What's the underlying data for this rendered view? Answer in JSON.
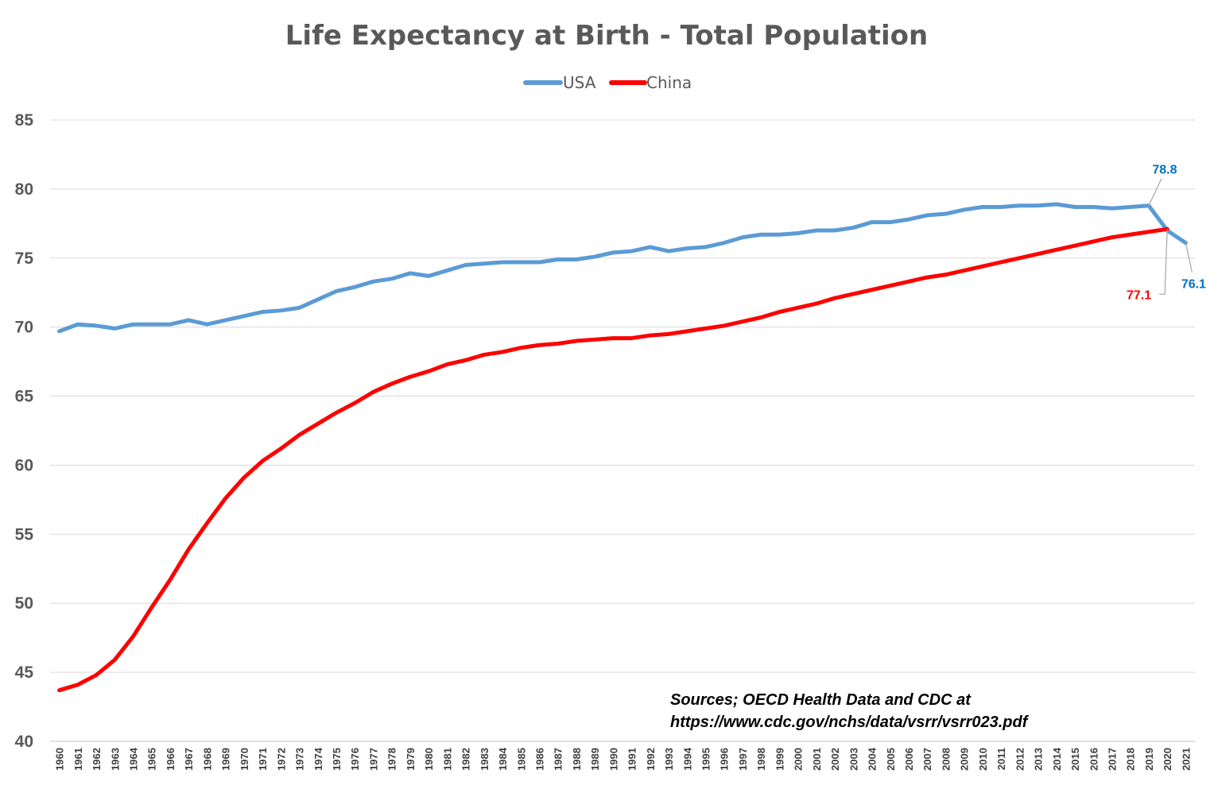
{
  "chart_data": {
    "type": "line",
    "title": "Life Expectancy at Birth - Total Population",
    "xlabel": "",
    "ylabel": "",
    "ylim": [
      40,
      85
    ],
    "yticks": [
      40,
      45,
      50,
      55,
      60,
      65,
      70,
      75,
      80,
      85
    ],
    "grid": true,
    "legend": "top-center",
    "x": [
      1960,
      1961,
      1962,
      1963,
      1964,
      1965,
      1966,
      1967,
      1968,
      1969,
      1970,
      1971,
      1972,
      1973,
      1974,
      1975,
      1976,
      1977,
      1978,
      1979,
      1980,
      1981,
      1982,
      1983,
      1984,
      1985,
      1986,
      1987,
      1988,
      1989,
      1990,
      1991,
      1992,
      1993,
      1994,
      1995,
      1996,
      1997,
      1998,
      1999,
      2000,
      2001,
      2002,
      2003,
      2004,
      2005,
      2006,
      2007,
      2008,
      2009,
      2010,
      2011,
      2012,
      2013,
      2014,
      2015,
      2016,
      2017,
      2018,
      2019,
      2020,
      2021
    ],
    "series": [
      {
        "name": "USA",
        "color": "#5b9bd5",
        "values": [
          69.7,
          70.2,
          70.1,
          69.9,
          70.2,
          70.2,
          70.2,
          70.5,
          70.2,
          70.5,
          70.8,
          71.1,
          71.2,
          71.4,
          72.0,
          72.6,
          72.9,
          73.3,
          73.5,
          73.9,
          73.7,
          74.1,
          74.5,
          74.6,
          74.7,
          74.7,
          74.7,
          74.9,
          74.9,
          75.1,
          75.4,
          75.5,
          75.8,
          75.5,
          75.7,
          75.8,
          76.1,
          76.5,
          76.7,
          76.7,
          76.8,
          77.0,
          77.0,
          77.2,
          77.6,
          77.6,
          77.8,
          78.1,
          78.2,
          78.5,
          78.7,
          78.7,
          78.8,
          78.8,
          78.9,
          78.7,
          78.7,
          78.6,
          78.7,
          78.8,
          77.0,
          76.1
        ]
      },
      {
        "name": "China",
        "color": "#ff0000",
        "values": [
          43.7,
          44.1,
          44.8,
          45.9,
          47.6,
          49.7,
          51.7,
          53.9,
          55.8,
          57.6,
          59.1,
          60.3,
          61.2,
          62.2,
          63.0,
          63.8,
          64.5,
          65.3,
          65.9,
          66.4,
          66.8,
          67.3,
          67.6,
          68.0,
          68.2,
          68.5,
          68.7,
          68.8,
          69.0,
          69.1,
          69.2,
          69.2,
          69.4,
          69.5,
          69.7,
          69.9,
          70.1,
          70.4,
          70.7,
          71.1,
          71.4,
          71.7,
          72.1,
          72.4,
          72.7,
          73.0,
          73.3,
          73.6,
          73.8,
          74.1,
          74.4,
          74.7,
          75.0,
          75.3,
          75.6,
          75.9,
          76.2,
          76.5,
          76.7,
          76.9,
          77.1,
          null
        ]
      }
    ],
    "data_labels": [
      {
        "series": "USA",
        "x": 2019,
        "text": "78.8",
        "color": "#0070c0"
      },
      {
        "series": "China",
        "x": 2020,
        "text": "77.1",
        "color": "#ff0000"
      },
      {
        "series": "USA",
        "x": 2021,
        "text": "76.1",
        "color": "#0070c0"
      }
    ],
    "annotation": {
      "line1": "Sources; OECD Health Data and CDC at",
      "line2": "https://www.cdc.gov/nchs/data/vsrr/vsrr023.pdf"
    }
  }
}
